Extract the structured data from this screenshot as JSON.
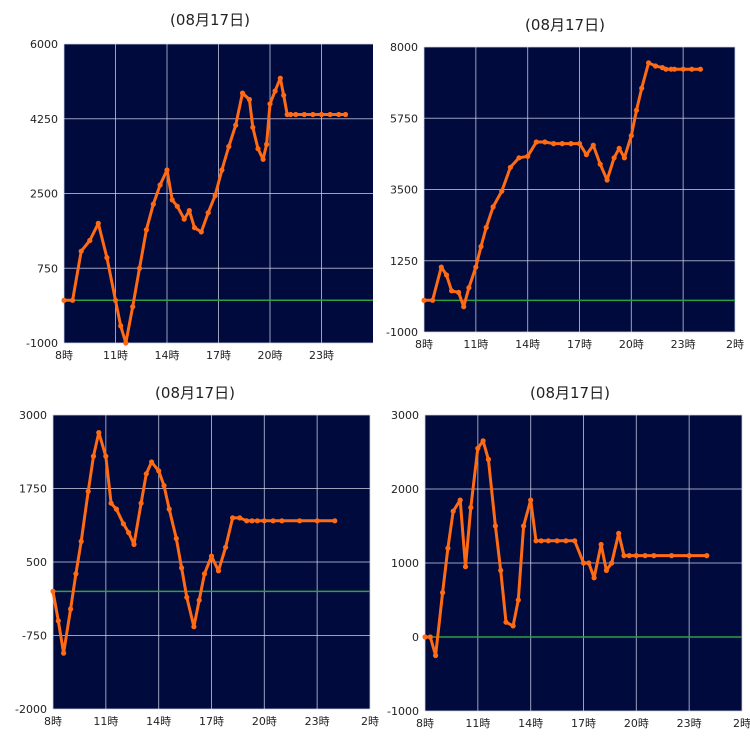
{
  "colors": {
    "plot_bg": "#000a3d",
    "series": "#ff6a14",
    "zero_line": "#2ea043",
    "grid": "#cfd3e6"
  },
  "chart_data": [
    {
      "type": "line",
      "title": "(08月17日)",
      "ylim": [
        -1000,
        6000
      ],
      "yticks": [
        "6000",
        "4250",
        "2500",
        "750",
        "-1000"
      ],
      "xlim": [
        8,
        26
      ],
      "xticks": [
        "8時",
        "11時",
        "14時",
        "17時",
        "20時",
        "23時"
      ],
      "grid": true,
      "series": [
        {
          "x": [
            8.0,
            8.5,
            9.0,
            9.5,
            10.0,
            10.5,
            11.0,
            11.3,
            11.6,
            12.0,
            12.4,
            12.8,
            13.2,
            13.6,
            14.0,
            14.3,
            14.6,
            15.0,
            15.3,
            15.6,
            16.0,
            16.4,
            16.8,
            17.2,
            17.6,
            18.0,
            18.4,
            18.8,
            19.0,
            19.3,
            19.6,
            19.8,
            20.0,
            20.3,
            20.6,
            20.8,
            21.0,
            21.2,
            21.5,
            22.0,
            22.5,
            23.0,
            23.5,
            24.0,
            24.4
          ],
          "y": [
            0,
            0,
            1150,
            1400,
            1800,
            1000,
            0,
            -600,
            -1000,
            -150,
            750,
            1650,
            2250,
            2700,
            3050,
            2350,
            2200,
            1900,
            2100,
            1700,
            1600,
            2050,
            2450,
            3050,
            3600,
            4100,
            4850,
            4700,
            4050,
            3550,
            3300,
            3650,
            4600,
            4900,
            5200,
            4800,
            4350,
            4350,
            4350,
            4350,
            4350,
            4350,
            4350,
            4350,
            4350
          ]
        }
      ]
    },
    {
      "type": "line",
      "title": "(08月17日)",
      "ylim": [
        -1000,
        8000
      ],
      "yticks": [
        "8000",
        "5750",
        "3500",
        "1250",
        "-1000"
      ],
      "xlim": [
        8,
        26
      ],
      "xticks": [
        "8時",
        "11時",
        "14時",
        "17時",
        "20時",
        "23時",
        "2時"
      ],
      "grid": true,
      "series": [
        {
          "x": [
            8.0,
            8.5,
            9.0,
            9.3,
            9.6,
            10.0,
            10.3,
            10.6,
            11.0,
            11.3,
            11.6,
            12.0,
            12.5,
            13.0,
            13.5,
            14.0,
            14.5,
            15.0,
            15.5,
            16.0,
            16.5,
            17.0,
            17.4,
            17.8,
            18.2,
            18.6,
            19.0,
            19.3,
            19.6,
            20.0,
            20.3,
            20.6,
            21.0,
            21.4,
            21.8,
            22.0,
            22.3,
            22.5,
            23.0,
            23.5,
            24.0
          ],
          "y": [
            0,
            0,
            1050,
            800,
            300,
            250,
            -200,
            400,
            1050,
            1700,
            2300,
            2950,
            3450,
            4200,
            4500,
            4550,
            5000,
            5000,
            4950,
            4950,
            4950,
            4950,
            4600,
            4900,
            4300,
            3800,
            4500,
            4800,
            4500,
            5200,
            6000,
            6700,
            7500,
            7400,
            7350,
            7300,
            7300,
            7300,
            7300,
            7300,
            7300
          ]
        }
      ]
    },
    {
      "type": "line",
      "title": "(08月17日)",
      "ylim": [
        -2000,
        3000
      ],
      "yticks": [
        "3000",
        "1750",
        "500",
        "-750",
        "-2000"
      ],
      "xlim": [
        8,
        26
      ],
      "xticks": [
        "8時",
        "11時",
        "14時",
        "17時",
        "20時",
        "23時",
        "2時"
      ],
      "grid": true,
      "series": [
        {
          "x": [
            8.0,
            8.3,
            8.6,
            9.0,
            9.3,
            9.6,
            10.0,
            10.3,
            10.6,
            11.0,
            11.3,
            11.6,
            12.0,
            12.3,
            12.6,
            13.0,
            13.3,
            13.6,
            14.0,
            14.3,
            14.6,
            15.0,
            15.3,
            15.6,
            16.0,
            16.3,
            16.6,
            17.0,
            17.4,
            17.8,
            18.2,
            18.6,
            19.0,
            19.3,
            19.6,
            20.0,
            20.5,
            21.0,
            22.0,
            23.0,
            24.0
          ],
          "y": [
            0,
            -500,
            -1050,
            -300,
            300,
            850,
            1700,
            2300,
            2700,
            2300,
            1500,
            1400,
            1150,
            1000,
            800,
            1500,
            2000,
            2200,
            2050,
            1800,
            1400,
            900,
            400,
            -100,
            -600,
            -150,
            300,
            600,
            350,
            750,
            1250,
            1250,
            1200,
            1200,
            1200,
            1200,
            1200,
            1200,
            1200,
            1200,
            1200
          ]
        }
      ]
    },
    {
      "type": "line",
      "title": "(08月17日)",
      "ylim": [
        -1000,
        3000
      ],
      "yticks": [
        "3000",
        "2000",
        "1000",
        "0",
        "-1000"
      ],
      "xlim": [
        8,
        26
      ],
      "xticks": [
        "8時",
        "11時",
        "14時",
        "17時",
        "20時",
        "23時",
        "2時"
      ],
      "grid": true,
      "series": [
        {
          "x": [
            8.0,
            8.3,
            8.6,
            9.0,
            9.3,
            9.6,
            10.0,
            10.3,
            10.6,
            11.0,
            11.3,
            11.6,
            12.0,
            12.3,
            12.6,
            13.0,
            13.3,
            13.6,
            14.0,
            14.3,
            14.6,
            15.0,
            15.5,
            16.0,
            16.5,
            17.0,
            17.3,
            17.6,
            18.0,
            18.3,
            18.6,
            19.0,
            19.3,
            19.6,
            20.0,
            20.5,
            21.0,
            22.0,
            23.0,
            24.0
          ],
          "y": [
            0,
            0,
            -250,
            600,
            1200,
            1700,
            1850,
            950,
            1750,
            2550,
            2650,
            2400,
            1500,
            900,
            200,
            150,
            500,
            1500,
            1850,
            1300,
            1300,
            1300,
            1300,
            1300,
            1300,
            1000,
            1000,
            800,
            1250,
            900,
            1000,
            1400,
            1100,
            1100,
            1100,
            1100,
            1100,
            1100,
            1100,
            1100
          ]
        }
      ]
    }
  ]
}
